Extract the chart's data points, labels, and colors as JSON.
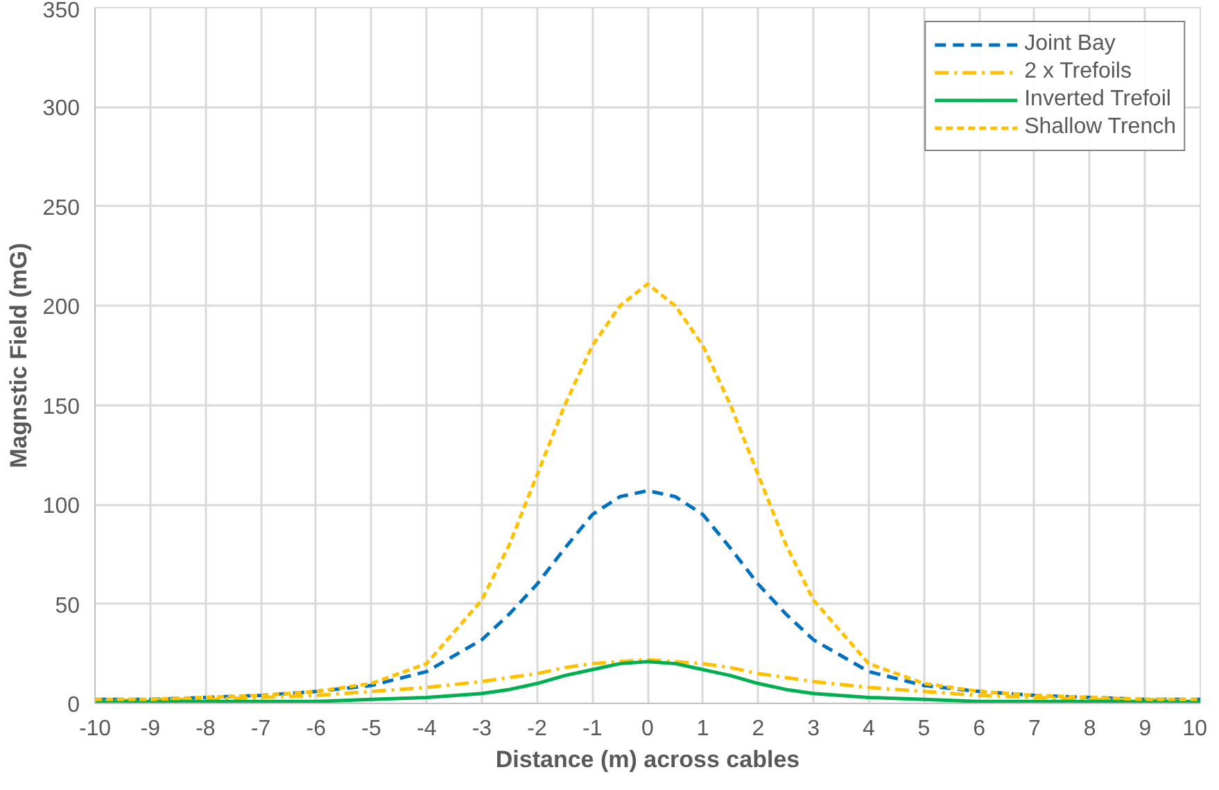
{
  "chart_data": {
    "type": "line",
    "xlabel": "Distance (m) across cables",
    "ylabel": "Magnstic Field (mG)",
    "x": [
      -10,
      -9,
      -8,
      -7,
      -6,
      -5,
      -4,
      -3,
      -2.5,
      -2,
      -1.5,
      -1,
      -0.5,
      0,
      0.5,
      1,
      1.5,
      2,
      2.5,
      3,
      4,
      5,
      6,
      7,
      8,
      9,
      10
    ],
    "series": [
      {
        "name": "Joint Bay",
        "color": "#0070c0",
        "line_style": "dashed",
        "values": [
          2,
          2,
          3,
          4,
          6,
          9,
          16,
          32,
          45,
          60,
          78,
          95,
          104,
          107,
          104,
          95,
          78,
          60,
          45,
          32,
          16,
          9,
          6,
          4,
          3,
          2,
          2
        ]
      },
      {
        "name": "2 x Trefoils",
        "color": "#ffc000",
        "line_style": "dashdot",
        "values": [
          1,
          2,
          2,
          3,
          4,
          6,
          8,
          11,
          13,
          15,
          18,
          20,
          21,
          22,
          21,
          20,
          18,
          15,
          13,
          11,
          8,
          6,
          4,
          3,
          2,
          2,
          1
        ]
      },
      {
        "name": "Inverted Trefoil",
        "color": "#00b050",
        "line_style": "solid",
        "values": [
          1,
          1,
          1,
          1,
          1,
          2,
          3,
          5,
          7,
          10,
          14,
          17,
          20,
          21,
          20,
          17,
          14,
          10,
          7,
          5,
          3,
          2,
          1,
          1,
          1,
          1,
          1
        ]
      },
      {
        "name": "Shallow Trench",
        "color": "#ffc000",
        "line_style": "dotted",
        "values": [
          2,
          2,
          3,
          4,
          6,
          10,
          20,
          52,
          80,
          115,
          150,
          180,
          200,
          211,
          200,
          180,
          150,
          115,
          80,
          52,
          20,
          10,
          6,
          4,
          3,
          2,
          2
        ]
      }
    ],
    "xlim": [
      -10,
      10
    ],
    "xticks": [
      -10,
      -9,
      -8,
      -7,
      -6,
      -5,
      -4,
      -3,
      -2,
      -1,
      0,
      1,
      2,
      3,
      4,
      5,
      6,
      7,
      8,
      9,
      10
    ],
    "ylim": [
      0,
      350
    ],
    "yticks": [
      0,
      50,
      100,
      150,
      200,
      250,
      300,
      350
    ],
    "grid": true,
    "legend": "top right",
    "marker": "none"
  }
}
